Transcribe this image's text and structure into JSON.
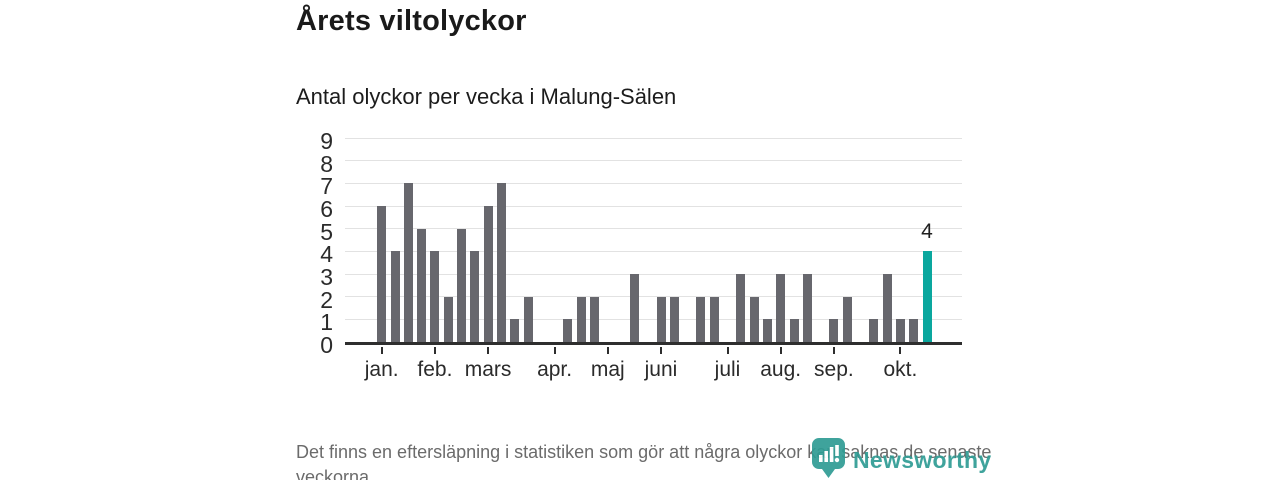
{
  "header": {
    "title": "Årets viltolyckor",
    "subtitle": "Antal olyckor per vecka i Malung-Sälen"
  },
  "chart_data": {
    "type": "bar",
    "title": "Årets viltolyckor",
    "subtitle": "Antal olyckor per vecka i Malung-Sälen",
    "x_unit": "vecka",
    "weeks": [
      1,
      2,
      3,
      4,
      5,
      6,
      7,
      8,
      9,
      10,
      11,
      12,
      13,
      14,
      15,
      16,
      17,
      18,
      19,
      20,
      21,
      22,
      23,
      24,
      25,
      26,
      27,
      28,
      29,
      30,
      31,
      32,
      33,
      34,
      35,
      36,
      37,
      38,
      39,
      40,
      41,
      42
    ],
    "values": [
      6,
      4,
      7,
      5,
      4,
      2,
      5,
      4,
      6,
      7,
      1,
      2,
      0,
      0,
      1,
      2,
      2,
      0,
      0,
      3,
      0,
      2,
      2,
      0,
      2,
      2,
      0,
      3,
      2,
      1,
      3,
      1,
      3,
      0,
      1,
      2,
      0,
      1,
      3,
      1,
      1,
      4
    ],
    "highlight": {
      "index": 41,
      "value": 4,
      "label": "4"
    },
    "month_ticks": [
      {
        "label": "jan.",
        "week": 1
      },
      {
        "label": "feb.",
        "week": 5
      },
      {
        "label": "mars",
        "week": 9
      },
      {
        "label": "apr.",
        "week": 14
      },
      {
        "label": "maj",
        "week": 18
      },
      {
        "label": "juni",
        "week": 22
      },
      {
        "label": "juli",
        "week": 27
      },
      {
        "label": "aug.",
        "week": 31
      },
      {
        "label": "sep.",
        "week": 35
      },
      {
        "label": "okt.",
        "week": 40
      }
    ],
    "yticks": [
      0,
      1,
      2,
      3,
      4,
      5,
      6,
      7,
      8,
      9
    ],
    "ylim": [
      0,
      9
    ],
    "grid": true,
    "legend": null,
    "colors": {
      "bar": "#67676d",
      "highlight": "#0aa79e",
      "gridline": "#e2e2e2",
      "axis": "#2e2e2e"
    }
  },
  "footer": {
    "note": "Det finns en eftersläpning i statistiken som gör att några olyckor kan saknas de senaste veckorna."
  },
  "logo": {
    "text": "Newsworthy",
    "color": "#2f9c94"
  }
}
